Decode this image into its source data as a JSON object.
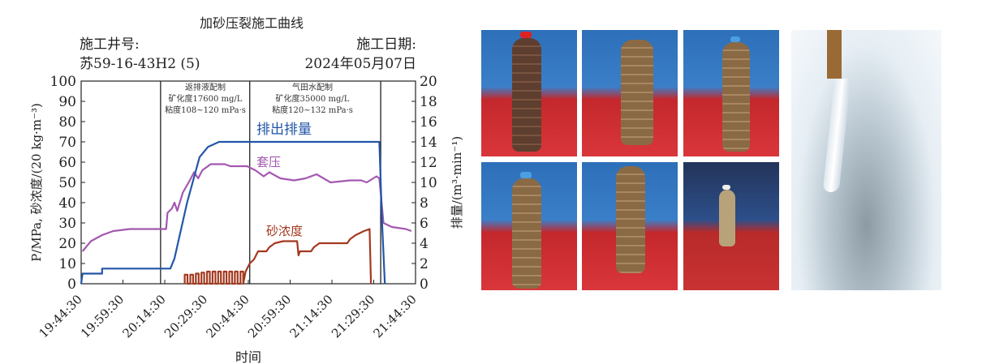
{
  "chart_data": {
    "type": "line",
    "title": "加砂压裂施工曲线",
    "well_label": "施工井号:",
    "well_value": "苏59-16-43H2 (5)",
    "date_label": "施工日期:",
    "date_value": "2024年05月07日",
    "xlabel": "时间",
    "ylabel_left": "P/MPa, 砂浓度/(20 kg·m⁻³)",
    "ylabel_right": "排量/(m³·min⁻¹)",
    "xlim": [
      "19:44:30",
      "21:44:30"
    ],
    "xticks": [
      "19:44:30",
      "19:59:30",
      "20:14:30",
      "20:29:30",
      "20:44:30",
      "20:59:30",
      "21:14:30",
      "21:29:30",
      "21:44:30"
    ],
    "ylim_left": [
      0,
      100
    ],
    "yticks_left": [
      0,
      10,
      20,
      30,
      40,
      50,
      60,
      70,
      80,
      90,
      100
    ],
    "ylim_right": [
      0,
      20
    ],
    "yticks_right": [
      0,
      2,
      4,
      6,
      8,
      10,
      12,
      14,
      16,
      18,
      20
    ],
    "grid": false,
    "phase_lines": [
      "20:13:00",
      "20:45:00",
      "21:32:00"
    ],
    "annotations": [
      {
        "lines": [
          "返排液配制",
          "矿化度17600 mg/L",
          "粘度108~120 mPa·s"
        ]
      },
      {
        "lines": [
          "气田水配制",
          "矿化度35000 mg/L",
          "粘度120~132 mPa·s"
        ]
      }
    ],
    "series": [
      {
        "name": "排出排量",
        "axis": "right",
        "color": "#2356a8",
        "x": [
          "19:44:30",
          "19:45:00",
          "19:52:00",
          "19:52:00",
          "20:16:30",
          "20:18:00",
          "20:22:30",
          "20:27:00",
          "20:30:00",
          "20:34:00",
          "21:31:30",
          "21:32:30",
          "21:33:30"
        ],
        "y": [
          0,
          1,
          1,
          1.5,
          1.5,
          2.5,
          8,
          12.5,
          13.5,
          14,
          14,
          6,
          0
        ]
      },
      {
        "name": "套压",
        "axis": "left",
        "color": "#a458b0",
        "x": [
          "19:45:00",
          "19:48:00",
          "19:52:00",
          "19:56:00",
          "20:02:00",
          "20:15:00",
          "20:15:30",
          "20:17:00",
          "20:18:00",
          "20:19:00",
          "20:21:00",
          "20:23:30",
          "20:25:00",
          "20:26:30",
          "20:28:00",
          "20:31:00",
          "20:36:00",
          "20:38:00",
          "20:44:00",
          "20:47:00",
          "20:50:00",
          "20:52:00",
          "20:56:00",
          "21:01:00",
          "21:05:00",
          "21:09:00",
          "21:14:00",
          "21:21:00",
          "21:25:00",
          "21:27:00",
          "21:30:30",
          "21:31:30",
          "21:33:00",
          "21:36:00",
          "21:41:00",
          "21:43:00"
        ],
        "y": [
          16,
          21,
          24,
          26,
          27,
          27,
          35,
          37,
          40,
          36,
          45,
          51,
          55,
          52,
          56,
          59,
          59,
          58,
          58,
          56,
          53,
          55,
          52,
          51,
          52,
          54,
          50,
          51,
          51,
          50,
          53,
          52,
          30,
          28,
          27,
          26
        ]
      },
      {
        "name": "砂浓度",
        "axis": "left",
        "color": "#a3391f",
        "x": [
          "20:21:40",
          "20:21:40",
          "20:22:40",
          "20:22:40",
          "20:23:40",
          "20:23:40",
          "20:24:40",
          "20:24:40",
          "20:25:40",
          "20:25:40",
          "20:26:40",
          "20:26:40",
          "20:27:40",
          "20:27:40",
          "20:28:40",
          "20:28:40",
          "20:29:40",
          "20:29:40",
          "20:30:40",
          "20:30:40",
          "20:31:40",
          "20:31:40",
          "20:32:40",
          "20:32:40",
          "20:33:40",
          "20:33:40",
          "20:34:40",
          "20:34:40",
          "20:35:40",
          "20:35:40",
          "20:36:40",
          "20:36:40",
          "20:37:40",
          "20:37:40",
          "20:38:40",
          "20:38:40",
          "20:39:40",
          "20:39:40",
          "20:40:40",
          "20:40:40",
          "20:41:40",
          "20:41:40",
          "20:42:40",
          "20:42:40",
          "20:43:30",
          "20:45:00",
          "20:46:30",
          "20:48:00",
          "20:51:00",
          "20:52:00",
          "20:54:00",
          "20:57:00",
          "21:02:00",
          "21:02:30",
          "21:03:00",
          "21:07:00",
          "21:08:00",
          "21:10:00",
          "21:20:00",
          "21:21:00",
          "21:23:00",
          "21:26:00",
          "21:28:00",
          "21:28:30"
        ],
        "y": [
          0,
          4.5,
          4.5,
          0,
          0,
          4.5,
          4.5,
          0,
          0,
          5,
          5,
          0,
          0,
          5.5,
          5.5,
          0,
          0,
          6,
          6,
          0,
          0,
          6,
          6,
          0,
          0,
          6,
          6,
          0,
          0,
          6,
          6,
          0,
          0,
          6,
          6,
          0,
          0,
          6,
          6,
          0,
          0,
          6,
          6,
          0,
          6,
          10,
          12,
          16,
          16,
          18,
          20,
          21,
          21,
          14,
          16,
          16,
          18,
          20,
          20,
          22,
          24,
          26,
          27,
          0
        ]
      }
    ]
  },
  "photos": {
    "samples": [
      "sample-1",
      "sample-2",
      "sample-3",
      "sample-4",
      "sample-5",
      "sample-6"
    ],
    "main": "proppant-discharge"
  }
}
